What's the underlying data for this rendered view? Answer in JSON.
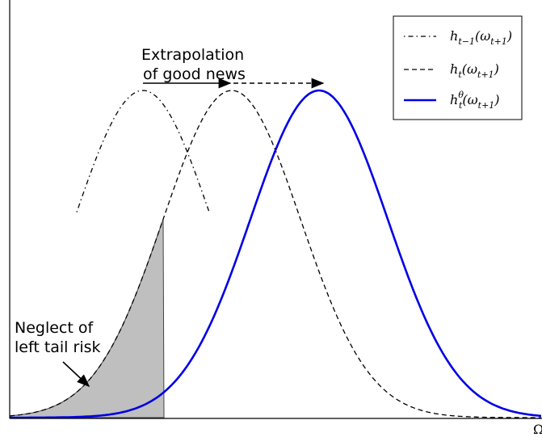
{
  "annotations": {
    "extrapolation": [
      "Extrapolation",
      "of good news"
    ],
    "neglect": [
      "Neglect of",
      "left tail risk"
    ]
  },
  "axis_label": "Ω",
  "legend": {
    "items": [
      {
        "parts": [
          {
            "text": "h"
          },
          {
            "text": "t−1",
            "style": "sub"
          },
          {
            "text": "(ω"
          },
          {
            "text": "t+1",
            "style": "sub"
          },
          {
            "text": ")"
          }
        ]
      },
      {
        "parts": [
          {
            "text": "h"
          },
          {
            "text": "t",
            "style": "sub"
          },
          {
            "text": "(ω"
          },
          {
            "text": "t+1",
            "style": "sub"
          },
          {
            "text": ")"
          }
        ]
      },
      {
        "parts": [
          {
            "text": "h"
          },
          {
            "text": "θ",
            "style": "sup"
          },
          {
            "text": "t",
            "style": "sub"
          },
          {
            "text": "(ω"
          },
          {
            "text": "t+1",
            "style": "sub"
          },
          {
            "text": ")"
          }
        ]
      }
    ]
  }
}
